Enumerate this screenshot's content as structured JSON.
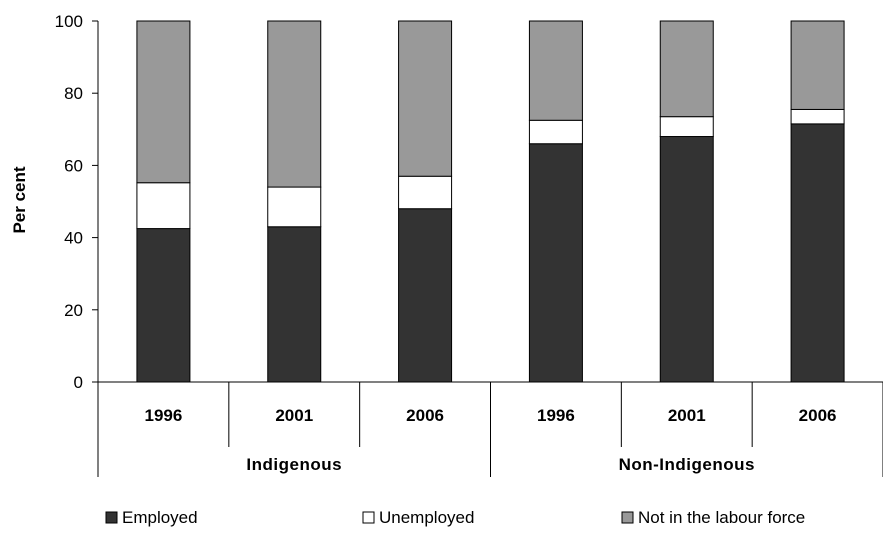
{
  "chart_data": {
    "type": "bar",
    "stacked": true,
    "ylabel": "Per cent",
    "ylim": [
      0,
      100
    ],
    "yticks": [
      0,
      20,
      40,
      60,
      80,
      100
    ],
    "grid": false,
    "legend_position": "bottom",
    "groups": [
      {
        "label": "Indigenous",
        "categories": [
          "1996",
          "2001",
          "2006"
        ]
      },
      {
        "label": "Non-Indigenous",
        "categories": [
          "1996",
          "2001",
          "2006"
        ]
      }
    ],
    "series": [
      {
        "name": "Employed",
        "color": "#333333",
        "values": [
          42.5,
          43,
          48,
          66,
          68,
          71.5
        ]
      },
      {
        "name": "Unemployed",
        "color": "#ffffff",
        "values": [
          12.7,
          11,
          9,
          6.5,
          5.5,
          4
        ]
      },
      {
        "name": "Not in the labour force",
        "color": "#999999",
        "values": [
          44.8,
          46,
          43,
          27.5,
          26.5,
          24.5
        ]
      }
    ]
  }
}
